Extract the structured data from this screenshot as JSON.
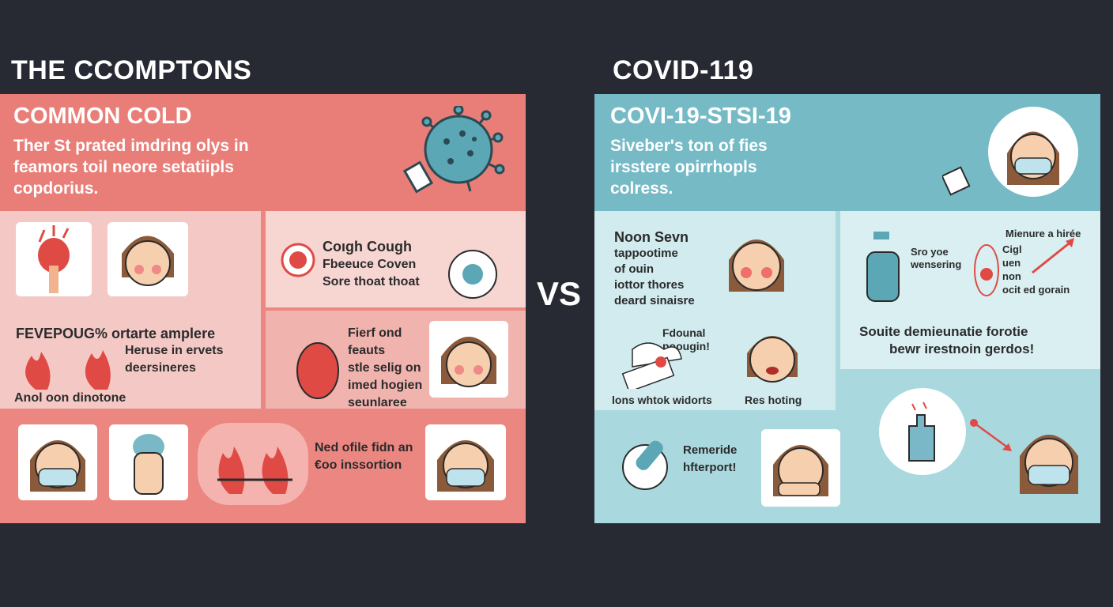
{
  "header": {
    "left_title": "THE CCOMPTONS",
    "right_title": "COVID-119",
    "vs": "VS"
  },
  "cold": {
    "heading": "COMMON COLD",
    "desc": [
      "Ther St prated imdring olys in",
      "feamors toil neore setatiipls",
      "copdorius."
    ],
    "cough_title": "Coıgh Cough",
    "cough_lines": [
      "Fbeeuce Coven",
      "Sore thoat thoat"
    ],
    "fever_title": "FEVEPOUG% ortarte amplere",
    "fever_lines": [
      "Heruse in ervets",
      "deersineres"
    ],
    "fever_caption": "Anol oon dinotone",
    "fierf_lines": [
      "Fierf ond",
      "feauts",
      "stle selig on",
      "imed hogien",
      "seunlaree"
    ],
    "bottom_lines": [
      "Ned ofile fidn an",
      "€oo inssortion"
    ]
  },
  "covid": {
    "heading": "COVI-19-STSI-19",
    "desc": [
      "Siveber's ton of fies",
      "irsstere opirrhopls",
      "colress."
    ],
    "noon_lines": [
      "Noon Sevn",
      "tappootime",
      "of ouin",
      "iottor thores",
      "deard sinaisre"
    ],
    "spray_lines": [
      "Sro yoe",
      "wensering"
    ],
    "measure_label": "Mienure a hirée",
    "measure_lines": [
      "Cigl",
      "uen",
      "non",
      "ocit ed gorain"
    ],
    "fdounal_lines": [
      "Fdounal",
      "poougin!"
    ],
    "lons_caption": "lons whtok widorts",
    "res_caption": "Res hoting",
    "souite_lines": [
      "Souite demieunatie forotie",
      "bewr irestnoin gerdos!"
    ],
    "reme_lines": [
      "Remeride",
      "hfterport!"
    ]
  },
  "colors": {
    "background": "#272a33",
    "cold_panel": "#ec8680",
    "covid_panel": "#a9d8df",
    "accent_red": "#e04a45",
    "accent_teal": "#5ba7b5"
  }
}
